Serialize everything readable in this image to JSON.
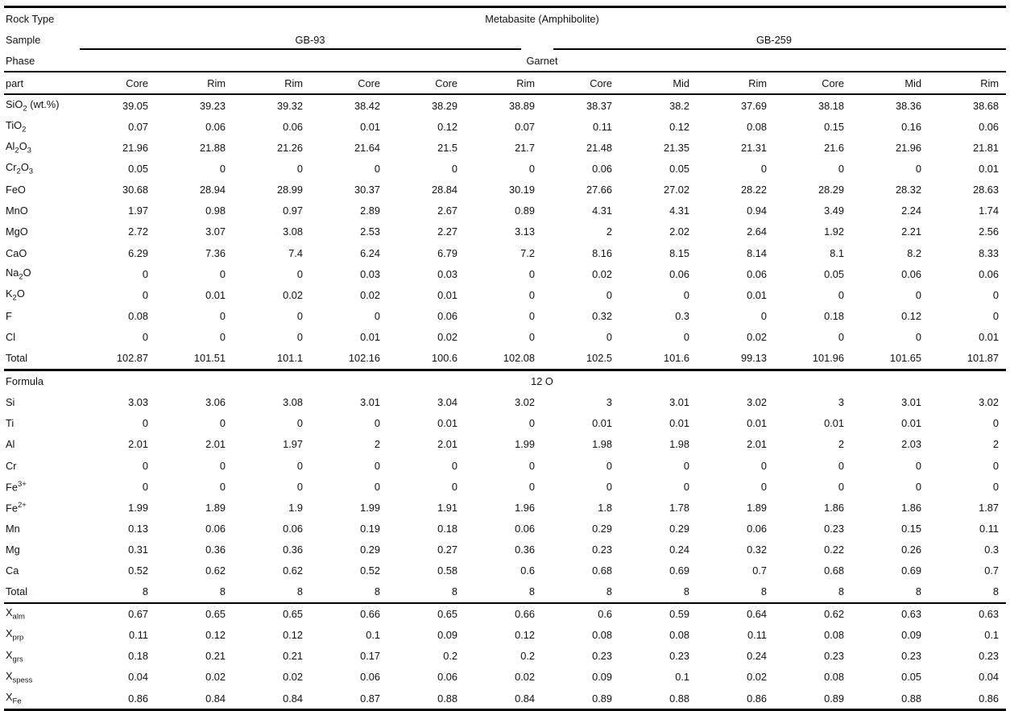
{
  "table": {
    "rock_type_label": "Rock Type",
    "rock_type_value": "Metabasite (Amphibolite)",
    "sample_label": "Sample",
    "samples": [
      {
        "name": "GB-93"
      },
      {
        "name": "GB-259"
      }
    ],
    "phase_label": "Phase",
    "phase_value": "Garnet",
    "part_label": "part",
    "parts": [
      "Core",
      "Rim",
      "Rim",
      "Core",
      "Core",
      "Rim",
      "Core",
      "Mid",
      "Rim",
      "Core",
      "Mid",
      "Rim"
    ],
    "oxide_rows": [
      {
        "label": [
          [
            "t",
            "SiO"
          ],
          [
            "sub",
            "2"
          ],
          [
            "t",
            " (wt.%)"
          ]
        ],
        "values": [
          39.05,
          39.23,
          39.32,
          38.42,
          38.29,
          38.89,
          38.37,
          38.2,
          37.69,
          38.18,
          38.36,
          38.68
        ]
      },
      {
        "label": [
          [
            "t",
            "TiO"
          ],
          [
            "sub",
            "2"
          ]
        ],
        "values": [
          0.07,
          0.06,
          0.06,
          0.01,
          0.12,
          0.07,
          0.11,
          0.12,
          0.08,
          0.15,
          0.16,
          0.06
        ]
      },
      {
        "label": [
          [
            "t",
            "Al"
          ],
          [
            "sub",
            "2"
          ],
          [
            "t",
            "O"
          ],
          [
            "sub",
            "3"
          ]
        ],
        "values": [
          21.96,
          21.88,
          21.26,
          21.64,
          21.5,
          21.7,
          21.48,
          21.35,
          21.31,
          21.6,
          21.96,
          21.81
        ]
      },
      {
        "label": [
          [
            "t",
            "Cr"
          ],
          [
            "sub",
            "2"
          ],
          [
            "t",
            "O"
          ],
          [
            "sub",
            "3"
          ]
        ],
        "values": [
          0.05,
          0,
          0,
          0,
          0,
          0,
          0.06,
          0.05,
          0,
          0,
          0,
          0.01
        ]
      },
      {
        "label": [
          [
            "t",
            "FeO"
          ]
        ],
        "values": [
          30.68,
          28.94,
          28.99,
          30.37,
          28.84,
          30.19,
          27.66,
          27.02,
          28.22,
          28.29,
          28.32,
          28.63
        ]
      },
      {
        "label": [
          [
            "t",
            "MnO"
          ]
        ],
        "values": [
          1.97,
          0.98,
          0.97,
          2.89,
          2.67,
          0.89,
          4.31,
          4.31,
          0.94,
          3.49,
          2.24,
          1.74
        ]
      },
      {
        "label": [
          [
            "t",
            "MgO"
          ]
        ],
        "values": [
          2.72,
          3.07,
          3.08,
          2.53,
          2.27,
          3.13,
          2,
          2.02,
          2.64,
          1.92,
          2.21,
          2.56
        ]
      },
      {
        "label": [
          [
            "t",
            "CaO"
          ]
        ],
        "values": [
          6.29,
          7.36,
          7.4,
          6.24,
          6.79,
          7.2,
          8.16,
          8.15,
          8.14,
          8.1,
          8.2,
          8.33
        ]
      },
      {
        "label": [
          [
            "t",
            "Na"
          ],
          [
            "sub",
            "2"
          ],
          [
            "t",
            "O"
          ]
        ],
        "values": [
          0,
          0,
          0,
          0.03,
          0.03,
          0,
          0.02,
          0.06,
          0.06,
          0.05,
          0.06,
          0.06
        ]
      },
      {
        "label": [
          [
            "t",
            "K"
          ],
          [
            "sub",
            "2"
          ],
          [
            "t",
            "O"
          ]
        ],
        "values": [
          0,
          0.01,
          0.02,
          0.02,
          0.01,
          0,
          0,
          0,
          0.01,
          0,
          0,
          0
        ]
      },
      {
        "label": [
          [
            "t",
            "F"
          ]
        ],
        "values": [
          0.08,
          0,
          0,
          0,
          0.06,
          0,
          0.32,
          0.3,
          0,
          0.18,
          0.12,
          0
        ]
      },
      {
        "label": [
          [
            "t",
            "Cl"
          ]
        ],
        "values": [
          0,
          0,
          0,
          0.01,
          0.02,
          0,
          0,
          0,
          0.02,
          0,
          0,
          0.01
        ]
      },
      {
        "label": [
          [
            "t",
            "Total"
          ]
        ],
        "values": [
          102.87,
          101.51,
          101.1,
          102.16,
          100.6,
          102.08,
          102.5,
          101.6,
          99.13,
          101.96,
          101.65,
          101.87
        ]
      }
    ],
    "formula_label": "Formula",
    "formula_value": "12 O",
    "formula_rows": [
      {
        "label": [
          [
            "t",
            "Si"
          ]
        ],
        "values": [
          3.03,
          3.06,
          3.08,
          3.01,
          3.04,
          3.02,
          3,
          3.01,
          3.02,
          3,
          3.01,
          3.02
        ]
      },
      {
        "label": [
          [
            "t",
            "Ti"
          ]
        ],
        "values": [
          0,
          0,
          0,
          0,
          0.01,
          0,
          0.01,
          0.01,
          0.01,
          0.01,
          0.01,
          0
        ]
      },
      {
        "label": [
          [
            "t",
            "Al"
          ]
        ],
        "values": [
          2.01,
          2.01,
          1.97,
          2,
          2.01,
          1.99,
          1.98,
          1.98,
          2.01,
          2,
          2.03,
          2
        ]
      },
      {
        "label": [
          [
            "t",
            "Cr"
          ]
        ],
        "values": [
          0,
          0,
          0,
          0,
          0,
          0,
          0,
          0,
          0,
          0,
          0,
          0
        ]
      },
      {
        "label": [
          [
            "t",
            "Fe"
          ],
          [
            "sup",
            "3+"
          ]
        ],
        "values": [
          0,
          0,
          0,
          0,
          0,
          0,
          0,
          0,
          0,
          0,
          0,
          0
        ]
      },
      {
        "label": [
          [
            "t",
            "Fe"
          ],
          [
            "sup",
            "2+"
          ]
        ],
        "values": [
          1.99,
          1.89,
          1.9,
          1.99,
          1.91,
          1.96,
          1.8,
          1.78,
          1.89,
          1.86,
          1.86,
          1.87
        ]
      },
      {
        "label": [
          [
            "t",
            "Mn"
          ]
        ],
        "values": [
          0.13,
          0.06,
          0.06,
          0.19,
          0.18,
          0.06,
          0.29,
          0.29,
          0.06,
          0.23,
          0.15,
          0.11
        ]
      },
      {
        "label": [
          [
            "t",
            "Mg"
          ]
        ],
        "values": [
          0.31,
          0.36,
          0.36,
          0.29,
          0.27,
          0.36,
          0.23,
          0.24,
          0.32,
          0.22,
          0.26,
          0.3
        ]
      },
      {
        "label": [
          [
            "t",
            "Ca"
          ]
        ],
        "values": [
          0.52,
          0.62,
          0.62,
          0.52,
          0.58,
          0.6,
          0.68,
          0.69,
          0.7,
          0.68,
          0.69,
          0.7
        ]
      },
      {
        "label": [
          [
            "t",
            "Total"
          ]
        ],
        "values": [
          8,
          8,
          8,
          8,
          8,
          8,
          8,
          8,
          8,
          8,
          8,
          8
        ]
      }
    ],
    "endmember_rows": [
      {
        "label": [
          [
            "t",
            "X"
          ],
          [
            "sub",
            "alm"
          ]
        ],
        "values": [
          0.67,
          0.65,
          0.65,
          0.66,
          0.65,
          0.66,
          0.6,
          0.59,
          0.64,
          0.62,
          0.63,
          0.63
        ]
      },
      {
        "label": [
          [
            "t",
            "X"
          ],
          [
            "sub",
            "prp"
          ]
        ],
        "values": [
          0.11,
          0.12,
          0.12,
          0.1,
          0.09,
          0.12,
          0.08,
          0.08,
          0.11,
          0.08,
          0.09,
          0.1
        ]
      },
      {
        "label": [
          [
            "t",
            "X"
          ],
          [
            "sub",
            "grs"
          ]
        ],
        "values": [
          0.18,
          0.21,
          0.21,
          0.17,
          0.2,
          0.2,
          0.23,
          0.23,
          0.24,
          0.23,
          0.23,
          0.23
        ]
      },
      {
        "label": [
          [
            "t",
            "X"
          ],
          [
            "sub",
            "spess"
          ]
        ],
        "values": [
          0.04,
          0.02,
          0.02,
          0.06,
          0.06,
          0.02,
          0.09,
          0.1,
          0.02,
          0.08,
          0.05,
          0.04
        ]
      },
      {
        "label": [
          [
            "t",
            "X"
          ],
          [
            "sub",
            "Fe"
          ]
        ],
        "values": [
          0.86,
          0.84,
          0.84,
          0.87,
          0.88,
          0.84,
          0.89,
          0.88,
          0.86,
          0.89,
          0.88,
          0.86
        ]
      }
    ]
  }
}
